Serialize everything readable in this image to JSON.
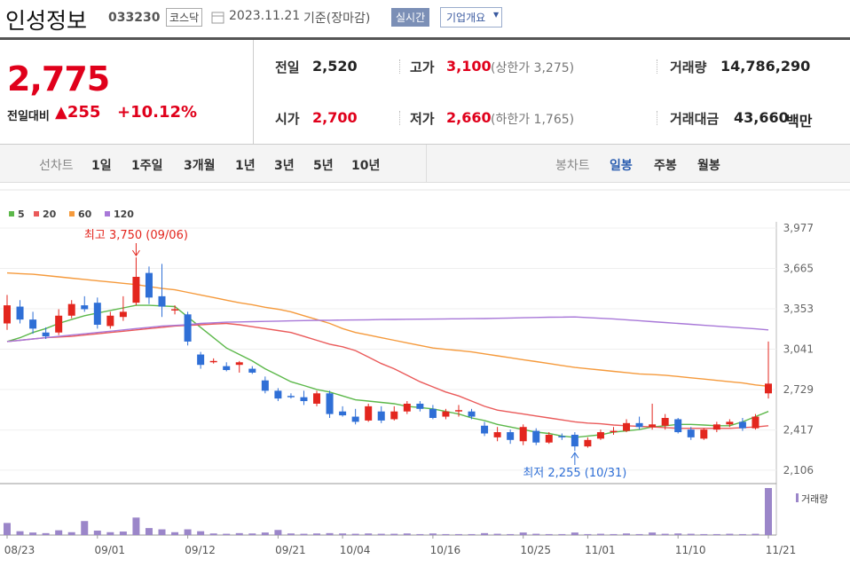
{
  "header": {
    "name": "인성정보",
    "code": "033230",
    "market": "코스닥",
    "date": "2023.11.21",
    "basis": "기준(장마감)",
    "realtime": "실시간",
    "overview": "기업개요"
  },
  "quote": {
    "price": "2,775",
    "change_label": "전일대비",
    "change": "▲255",
    "change_rate": "+10.12%",
    "prev": {
      "label": "전일",
      "value": "2,520"
    },
    "high": {
      "label": "고가",
      "value": "3,100",
      "note": "(상한가 3,275)"
    },
    "volume": {
      "label": "거래량",
      "value": "14,786,290"
    },
    "open": {
      "label": "시가",
      "value": "2,700"
    },
    "low": {
      "label": "저가",
      "value": "2,660",
      "note": "(하한가 1,765)"
    },
    "amount": {
      "label": "거래대금",
      "value": "43,660",
      "unit": "백만"
    }
  },
  "tabs": {
    "line_label": "선차트",
    "line": [
      "1일",
      "1주일",
      "3개월",
      "1년",
      "3년",
      "5년",
      "10년"
    ],
    "candle_label": "봉차트",
    "candle": [
      "일봉",
      "주봉",
      "월봉"
    ]
  },
  "chart_data": {
    "type": "candlestick",
    "categories": [
      "08/23",
      null,
      null,
      null,
      null,
      null,
      null,
      "09/01",
      null,
      null,
      null,
      null,
      null,
      null,
      "09/12",
      null,
      null,
      null,
      null,
      null,
      null,
      "09/21",
      null,
      null,
      null,
      null,
      "10/04",
      null,
      null,
      null,
      null,
      null,
      null,
      "10/16",
      null,
      null,
      null,
      null,
      null,
      null,
      "10/25",
      null,
      null,
      null,
      null,
      "11/01",
      null,
      null,
      null,
      null,
      null,
      null,
      "11/10",
      null,
      null,
      null,
      null,
      null,
      null,
      "11/21"
    ],
    "open": [
      3240,
      3370,
      3270,
      3170,
      3170,
      3300,
      3380,
      3400,
      3220,
      3290,
      3400,
      3630,
      3450,
      3340,
      3310,
      3000,
      2940,
      2910,
      2920,
      2890,
      2800,
      2720,
      2680,
      2670,
      2620,
      2700,
      2560,
      2520,
      2490,
      2560,
      2500,
      2560,
      2620,
      2580,
      2520,
      2560,
      2560,
      2450,
      2360,
      2400,
      2330,
      2410,
      2320,
      2370,
      2380,
      2290,
      2350,
      2400,
      2410,
      2470,
      2440,
      2450,
      2500,
      2420,
      2350,
      2420,
      2460,
      2480,
      2430,
      2700
    ],
    "high": [
      3460,
      3420,
      3330,
      3210,
      3350,
      3420,
      3450,
      3440,
      3330,
      3450,
      3750,
      3680,
      3700,
      3380,
      3330,
      3020,
      2970,
      2940,
      2950,
      2910,
      2830,
      2740,
      2700,
      2720,
      2720,
      2720,
      2600,
      2580,
      2620,
      2600,
      2600,
      2640,
      2640,
      2610,
      2580,
      2610,
      2580,
      2480,
      2440,
      2420,
      2460,
      2430,
      2400,
      2390,
      2400,
      2360,
      2420,
      2440,
      2500,
      2520,
      2620,
      2540,
      2510,
      2440,
      2430,
      2480,
      2500,
      2510,
      2540,
      3100
    ],
    "low": [
      3190,
      3240,
      3160,
      3120,
      3150,
      3280,
      3330,
      3200,
      3200,
      3260,
      3380,
      3390,
      3290,
      3310,
      3070,
      2890,
      2930,
      2870,
      2860,
      2850,
      2700,
      2640,
      2660,
      2610,
      2600,
      2510,
      2520,
      2460,
      2480,
      2470,
      2490,
      2540,
      2560,
      2500,
      2500,
      2520,
      2500,
      2370,
      2330,
      2310,
      2300,
      2300,
      2310,
      2340,
      2255,
      2280,
      2340,
      2380,
      2400,
      2420,
      2420,
      2420,
      2390,
      2340,
      2340,
      2400,
      2440,
      2410,
      2420,
      2660
    ],
    "close": [
      3380,
      3270,
      3200,
      3140,
      3300,
      3390,
      3350,
      3230,
      3300,
      3330,
      3600,
      3440,
      3370,
      3350,
      3100,
      2920,
      2950,
      2880,
      2940,
      2860,
      2720,
      2660,
      2670,
      2640,
      2700,
      2540,
      2530,
      2480,
      2600,
      2490,
      2560,
      2620,
      2580,
      2510,
      2560,
      2570,
      2520,
      2390,
      2400,
      2340,
      2440,
      2320,
      2380,
      2360,
      2290,
      2340,
      2400,
      2410,
      2470,
      2440,
      2460,
      2510,
      2400,
      2360,
      2420,
      2460,
      2480,
      2430,
      2520,
      2775
    ],
    "up_color": "#e3261e",
    "down_color": "#2f6fd6",
    "series": [
      {
        "name": "5",
        "color": "#5cb84a",
        "values": [
          3100,
          3130,
          3170,
          3200,
          3240,
          3270,
          3300,
          3320,
          3340,
          3360,
          3380,
          3380,
          3375,
          3370,
          3290,
          3210,
          3130,
          3050,
          3000,
          2950,
          2890,
          2840,
          2790,
          2760,
          2730,
          2710,
          2680,
          2650,
          2640,
          2630,
          2620,
          2600,
          2590,
          2580,
          2560,
          2540,
          2510,
          2490,
          2460,
          2440,
          2420,
          2400,
          2390,
          2370,
          2360,
          2370,
          2380,
          2400,
          2410,
          2420,
          2440,
          2450,
          2460,
          2460,
          2455,
          2450,
          2450,
          2480,
          2520,
          2560
        ]
      },
      {
        "name": "20",
        "color": "#ea5a5a",
        "values": [
          3100,
          3110,
          3120,
          3130,
          3135,
          3140,
          3150,
          3160,
          3170,
          3180,
          3190,
          3200,
          3210,
          3220,
          3225,
          3230,
          3235,
          3240,
          3230,
          3215,
          3200,
          3185,
          3170,
          3140,
          3110,
          3080,
          3060,
          3030,
          2980,
          2930,
          2890,
          2840,
          2790,
          2750,
          2710,
          2680,
          2640,
          2600,
          2570,
          2555,
          2540,
          2525,
          2510,
          2495,
          2480,
          2470,
          2465,
          2455,
          2450,
          2445,
          2440,
          2435,
          2430,
          2430,
          2430,
          2430,
          2430,
          2435,
          2440,
          2450
        ]
      },
      {
        "name": "60",
        "color": "#f59a3c",
        "values": [
          3630,
          3625,
          3620,
          3610,
          3600,
          3590,
          3580,
          3570,
          3560,
          3550,
          3540,
          3525,
          3510,
          3500,
          3480,
          3460,
          3440,
          3420,
          3400,
          3385,
          3365,
          3350,
          3330,
          3300,
          3270,
          3240,
          3200,
          3170,
          3150,
          3130,
          3110,
          3090,
          3070,
          3050,
          3040,
          3030,
          3020,
          3005,
          2990,
          2975,
          2960,
          2945,
          2930,
          2915,
          2900,
          2890,
          2880,
          2870,
          2860,
          2850,
          2845,
          2840,
          2830,
          2820,
          2810,
          2800,
          2790,
          2780,
          2765,
          2755
        ]
      },
      {
        "name": "120",
        "color": "#a878d8",
        "values": [
          3100,
          3110,
          3120,
          3130,
          3140,
          3150,
          3160,
          3170,
          3180,
          3190,
          3200,
          3210,
          3220,
          3225,
          3230,
          3240,
          3245,
          3250,
          3252,
          3254,
          3256,
          3258,
          3260,
          3262,
          3264,
          3265,
          3266,
          3267,
          3268,
          3270,
          3271,
          3272,
          3273,
          3274,
          3275,
          3276,
          3277,
          3278,
          3280,
          3282,
          3284,
          3286,
          3288,
          3289,
          3290,
          3285,
          3280,
          3275,
          3268,
          3261,
          3254,
          3247,
          3240,
          3233,
          3226,
          3219,
          3212,
          3205,
          3198,
          3190
        ]
      }
    ],
    "volume": {
      "name": "거래량",
      "color": "#9b86c9",
      "values": [
        3800000,
        1200000,
        800000,
        600000,
        1500000,
        900000,
        4400000,
        1400000,
        900000,
        1100000,
        5500000,
        2200000,
        1800000,
        900000,
        1800000,
        1200000,
        500000,
        400000,
        600000,
        500000,
        800000,
        1600000,
        500000,
        400000,
        500000,
        600000,
        500000,
        400000,
        500000,
        400000,
        400000,
        500000,
        300000,
        500000,
        300000,
        300000,
        300000,
        600000,
        400000,
        300000,
        800000,
        400000,
        300000,
        300000,
        800000,
        300000,
        400000,
        300000,
        500000,
        300000,
        800000,
        400000,
        500000,
        400000,
        300000,
        300000,
        400000,
        300000,
        400000,
        14786290
      ]
    },
    "ylim": [
      2037,
      4025
    ],
    "yticks": [
      {
        "value": 3977,
        "label": "3,977"
      },
      {
        "value": 3665,
        "label": "3,665"
      },
      {
        "value": 3353,
        "label": "3,353"
      },
      {
        "value": 3041,
        "label": "3,041"
      },
      {
        "value": 2729,
        "label": "2,729"
      },
      {
        "value": 2417,
        "label": "2,417"
      },
      {
        "value": 2106,
        "label": "2,106"
      }
    ],
    "grid": true,
    "annotations": {
      "max": "최고 3,750 (09/06)",
      "min": "최저 2,255 (10/31)"
    }
  }
}
